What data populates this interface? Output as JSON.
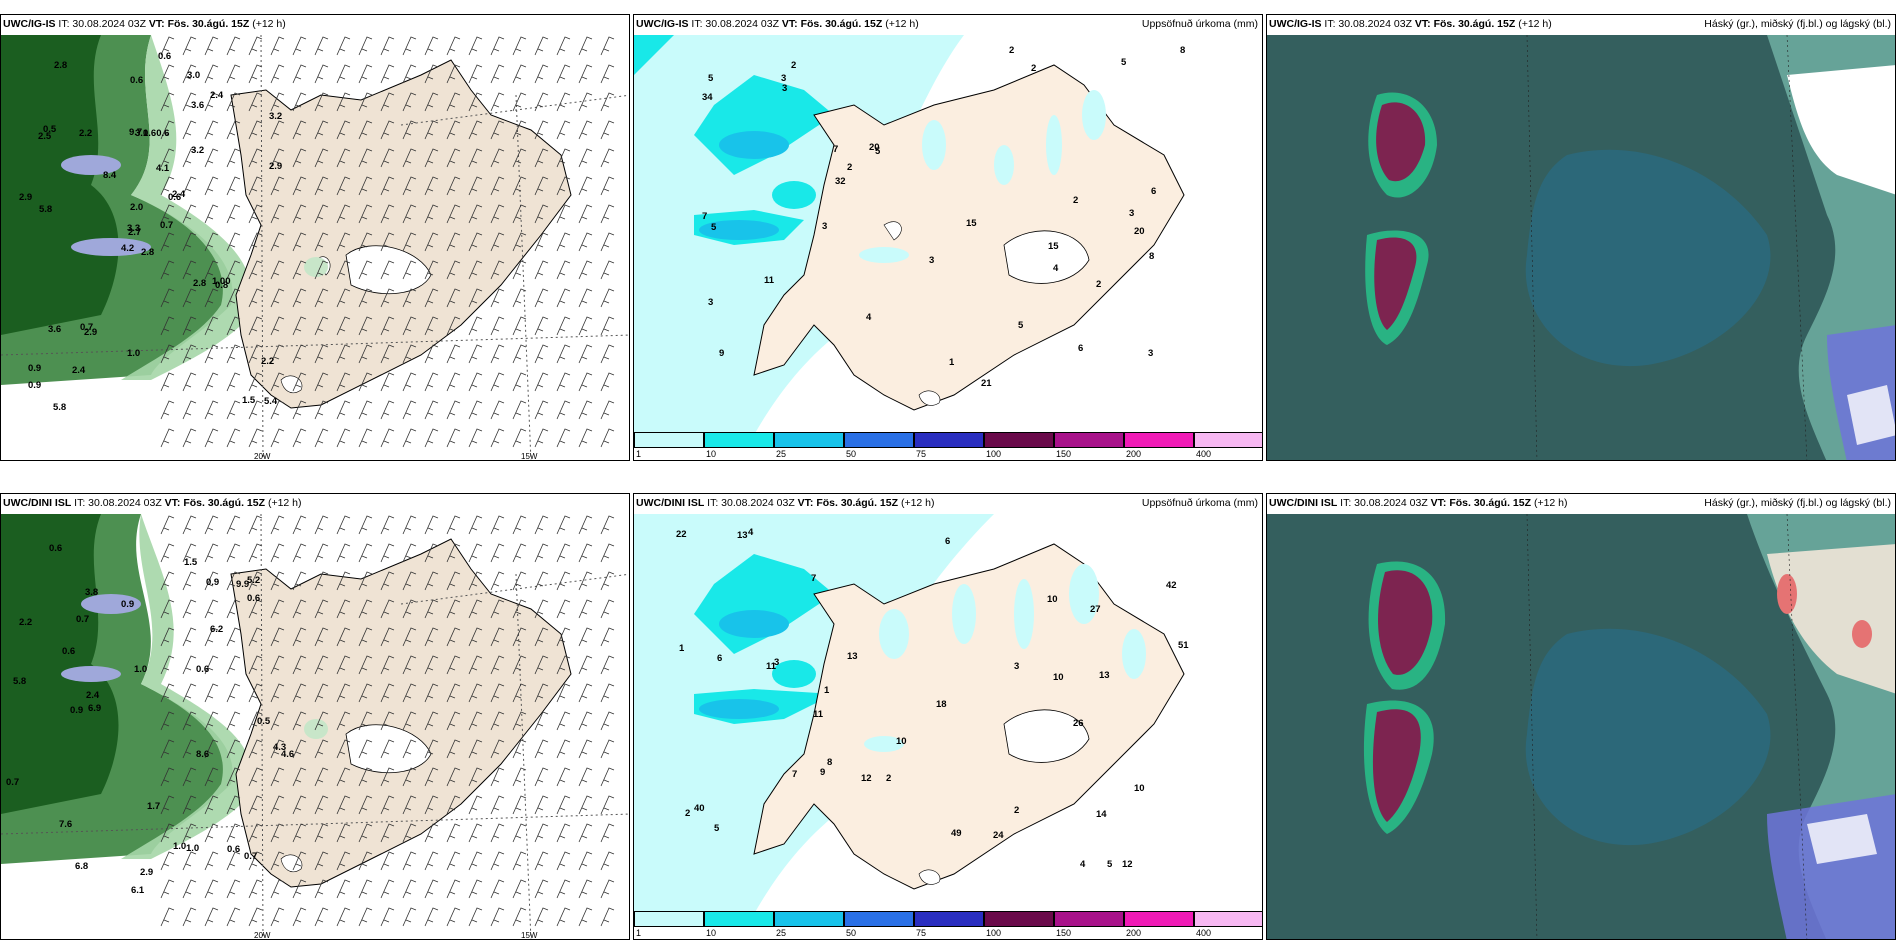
{
  "panels": [
    {
      "id": "p1",
      "model": "UWC/IG-IS",
      "it": " IT: 30.08.2024 03Z ",
      "vt": "VT: Fös. 30.ágú. 15Z",
      "lead": " (+12 h)",
      "right": "",
      "lon": [
        "20W",
        "15W"
      ]
    },
    {
      "id": "p2",
      "model": "UWC/IG-IS",
      "it": " IT: 30.08.2024 03Z ",
      "vt": "VT: Fös. 30.ágú. 15Z",
      "lead": " (+12 h)",
      "right": "Uppsöfnuð úrkoma (mm)"
    },
    {
      "id": "p3",
      "model": "UWC/IG-IS",
      "it": " IT: 30.08.2024 03Z ",
      "vt": "VT: Fös. 30.ágú. 15Z",
      "lead": " (+12 h)",
      "right": "Háský (gr.), miðský (fj.bl.) og lágský (bl.)"
    },
    {
      "id": "p4",
      "model": "UWC/DINI ISL",
      "it": " IT: 30.08.2024 03Z ",
      "vt": "VT: Fös. 30.ágú. 15Z",
      "lead": " (+12 h)",
      "right": "",
      "lon": [
        "20W",
        "15W"
      ]
    },
    {
      "id": "p5",
      "model": "UWC/DINI ISL",
      "it": " IT: 30.08.2024 03Z ",
      "vt": "VT: Fös. 30.ágú. 15Z",
      "lead": " (+12 h)",
      "right": "Uppsöfnuð úrkoma (mm)"
    },
    {
      "id": "p6",
      "model": "UWC/DINI ISL",
      "it": " IT: 30.08.2024 03Z ",
      "vt": "VT: Fös. 30.ágú. 15Z",
      "lead": " (+12 h)",
      "right": "Háský (gr.), miðský (fj.bl.) og lágský (bl.)"
    }
  ],
  "precip_colorbar": {
    "ticks": [
      "1",
      "10",
      "25",
      "50",
      "75",
      "100",
      "150",
      "200",
      "400"
    ],
    "colors": [
      "#c9fbfb",
      "#19e8e8",
      "#18c3ea",
      "#2a70e6",
      "#2a2ec0",
      "#6a0a4a",
      "#a8128a",
      "#f01bb6",
      "#f7b8f2"
    ]
  },
  "wind_values_ig": [
    "2.8",
    "2.5",
    "2.7",
    "0.9",
    "0.6",
    "2.9",
    "3.0",
    "0.60.6",
    "3.6",
    "0.7",
    "2.8",
    "5.4",
    "5.8",
    "3.2",
    "4.2",
    "3.2",
    "5.8",
    "9.7",
    "4.1",
    "3.6",
    "8.4",
    "0.9",
    "2.4",
    "3.1",
    "2.4",
    "0.8",
    "0.5",
    "0.6",
    "2.9",
    "2.8",
    "2.9",
    "3.3",
    "1.0",
    "2.0",
    "2.2",
    "2.4",
    "0.7",
    "1.5",
    "2.2",
    "1.00",
    "0.6"
  ],
  "precip_values_ig": [
    "15",
    "20",
    "9",
    "2",
    "5",
    "6",
    "3",
    "2",
    "7",
    "21",
    "34",
    "7",
    "5",
    "3",
    "4",
    "6",
    "3",
    "15",
    "20",
    "11",
    "8",
    "5",
    "32",
    "8",
    "2",
    "3",
    "4",
    "5",
    "3",
    "2",
    "1",
    "5",
    "2",
    "3",
    "3",
    "2"
  ],
  "wind_values_dini": [
    "2.2",
    "0.7",
    "0.6",
    "2.9",
    "9.9",
    "6.1",
    "8.6",
    "6.9",
    "5.2",
    "4.6",
    "4.3",
    "3.8",
    "6.2",
    "7.6",
    "5.8",
    "6.8",
    "2.4",
    "0.9",
    "0.7",
    "1.0",
    "0.6",
    "0.5",
    "1.0",
    "1.7",
    "0.9",
    "0.6",
    "0.6",
    "1.5",
    "0.6",
    "0.9",
    "0.7",
    "1.0"
  ],
  "precip_values_dini": [
    "10",
    "11",
    "13",
    "26",
    "12",
    "7",
    "2",
    "11",
    "9",
    "10",
    "13",
    "6",
    "22",
    "4",
    "1",
    "2",
    "18",
    "51",
    "42",
    "13",
    "5",
    "3",
    "24",
    "7",
    "14",
    "3",
    "49",
    "40",
    "27",
    "2",
    "8",
    "12",
    "5",
    "10",
    "10",
    "1",
    "6",
    "4"
  ]
}
